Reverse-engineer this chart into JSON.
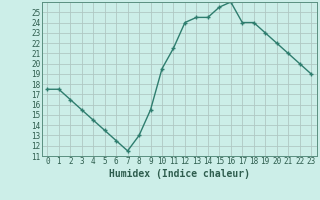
{
  "x": [
    0,
    1,
    2,
    3,
    4,
    5,
    6,
    7,
    8,
    9,
    10,
    11,
    12,
    13,
    14,
    15,
    16,
    17,
    18,
    19,
    20,
    21,
    22,
    23
  ],
  "y": [
    17.5,
    17.5,
    16.5,
    15.5,
    14.5,
    13.5,
    12.5,
    11.5,
    13.0,
    15.5,
    19.5,
    21.5,
    24.0,
    24.5,
    24.5,
    25.5,
    26.0,
    24.0,
    24.0,
    23.0,
    22.0,
    21.0,
    20.0,
    19.0
  ],
  "line_color": "#2e7d6e",
  "marker_color": "#2e7d6e",
  "bg_color": "#cceee8",
  "grid_color": "#b0c8c4",
  "xlabel": "Humidex (Indice chaleur)",
  "xlim": [
    -0.5,
    23.5
  ],
  "ylim": [
    11,
    26
  ],
  "yticks": [
    11,
    12,
    13,
    14,
    15,
    16,
    17,
    18,
    19,
    20,
    21,
    22,
    23,
    24,
    25
  ],
  "xticks": [
    0,
    1,
    2,
    3,
    4,
    5,
    6,
    7,
    8,
    9,
    10,
    11,
    12,
    13,
    14,
    15,
    16,
    17,
    18,
    19,
    20,
    21,
    22,
    23
  ],
  "tick_fontsize": 5.5,
  "xlabel_fontsize": 7.0,
  "label_color": "#2e5d4e",
  "spine_color": "#5a9080"
}
